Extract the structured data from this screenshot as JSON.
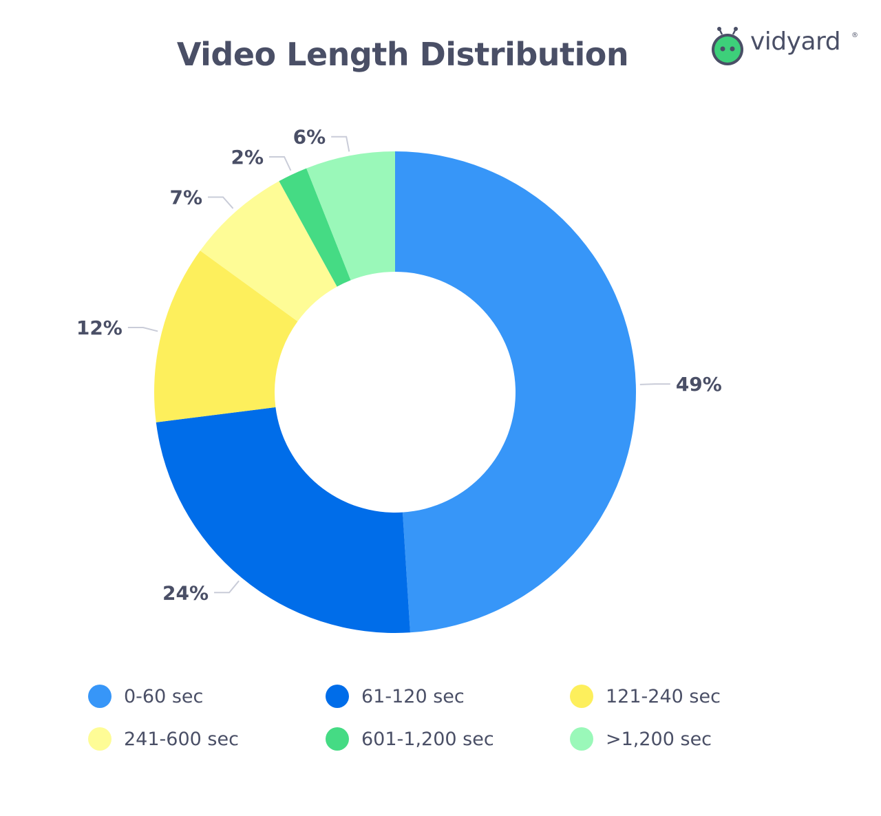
{
  "header": {
    "title": "Video Length Distribution"
  },
  "logo": {
    "text": "vidyard",
    "registered_mark": "®",
    "icon": "vidyard-robot-icon",
    "color": "#3dd07a"
  },
  "chart_data": {
    "type": "donut",
    "title": "Video Length Distribution",
    "categories": [
      "0-60 sec",
      "61-120 sec",
      "121-240 sec",
      "241-600 sec",
      "601-1,200 sec",
      ">1,200 sec"
    ],
    "values": [
      49,
      24,
      12,
      7,
      2,
      6
    ],
    "value_labels": [
      "49%",
      "24%",
      "12%",
      "7%",
      "2%",
      "6%"
    ],
    "colors": [
      "#3796f8",
      "#006de9",
      "#fdef5c",
      "#fefc96",
      "#45db84",
      "#9af8b9"
    ],
    "unit": "%",
    "legend_position": "bottom",
    "start_angle": "top",
    "direction": "clockwise"
  }
}
